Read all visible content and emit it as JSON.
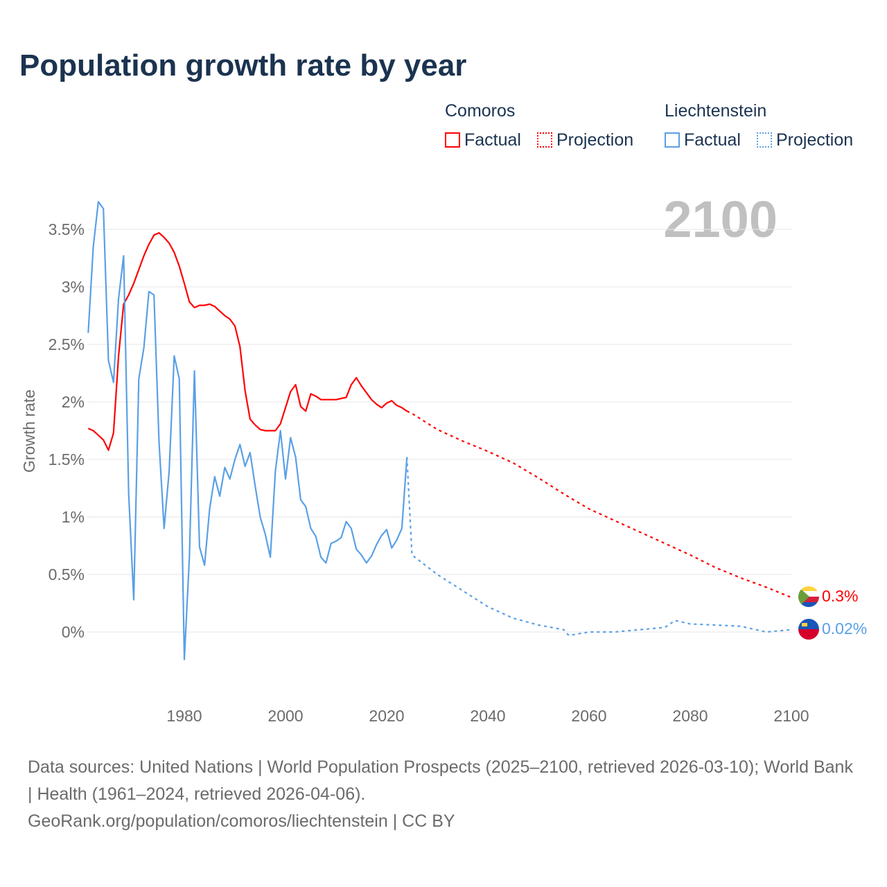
{
  "title": "Population growth rate by year",
  "legend": {
    "groups": [
      {
        "name": "Comoros",
        "color": "#ff0000",
        "factual": "Factual",
        "projection": "Projection"
      },
      {
        "name": "Liechtenstein",
        "color": "#5aa0e6",
        "factual": "Factual",
        "projection": "Projection"
      }
    ]
  },
  "year_display": "2100",
  "end_labels": {
    "comoros": "0.3%",
    "liechtenstein": "0.02%"
  },
  "source_lines": [
    "Data sources: United Nations | World Population Prospects (2025–2100, retrieved 2026-03-10); World Bank | Health (1961–2024, retrieved 2026-04-06).",
    "GeoRank.org/population/comoros/liechtenstein | CC BY"
  ],
  "chart_data": {
    "type": "line",
    "title": "Population growth rate by year",
    "xlabel": "",
    "ylabel": "Growth rate",
    "xlim": [
      1961,
      2100
    ],
    "ylim": [
      -0.45,
      3.8
    ],
    "xticks": [
      "1980",
      "2000",
      "2020",
      "2040",
      "2060",
      "2080",
      "2100"
    ],
    "yticks": [
      "0%",
      "0.5%",
      "1%",
      "1.5%",
      "2%",
      "2.5%",
      "3%",
      "3.5%"
    ],
    "series": [
      {
        "name": "Comoros Factual",
        "x_start": 1961,
        "values": [
          1.77,
          1.75,
          1.71,
          1.67,
          1.58,
          1.73,
          2.4,
          2.85,
          2.93,
          3.03,
          3.15,
          3.27,
          3.37,
          3.45,
          3.47,
          3.43,
          3.38,
          3.3,
          3.18,
          3.03,
          2.87,
          2.82,
          2.84,
          2.84,
          2.85,
          2.83,
          2.79,
          2.75,
          2.72,
          2.66,
          2.48,
          2.1,
          1.85,
          1.8,
          1.76,
          1.75,
          1.75,
          1.75,
          1.81,
          1.95,
          2.09,
          2.15,
          1.96,
          1.92,
          2.07,
          2.05,
          2.02,
          2.02,
          2.02,
          2.02,
          2.03,
          2.04,
          2.15,
          2.21,
          2.14,
          2.08,
          2.02,
          1.98,
          1.95,
          1.99,
          2.01,
          1.97,
          1.95,
          1.92
        ]
      },
      {
        "name": "Comoros Projection",
        "x": [
          2024,
          2025,
          2030,
          2035,
          2040,
          2045,
          2050,
          2055,
          2060,
          2065,
          2070,
          2075,
          2080,
          2085,
          2090,
          2095,
          2100
        ],
        "values": [
          1.92,
          1.9,
          1.76,
          1.66,
          1.57,
          1.47,
          1.34,
          1.2,
          1.07,
          0.97,
          0.87,
          0.77,
          0.67,
          0.56,
          0.47,
          0.39,
          0.3
        ]
      },
      {
        "name": "Liechtenstein Factual",
        "x_start": 1961,
        "values": [
          2.6,
          3.35,
          3.74,
          3.68,
          2.36,
          2.17,
          2.9,
          3.27,
          1.2,
          0.28,
          2.2,
          2.47,
          2.96,
          2.93,
          1.65,
          0.9,
          1.4,
          2.4,
          2.2,
          -0.24,
          0.65,
          2.27,
          0.74,
          0.58,
          1.07,
          1.35,
          1.18,
          1.43,
          1.33,
          1.5,
          1.63,
          1.44,
          1.56,
          1.27,
          1.0,
          0.85,
          0.65,
          1.4,
          1.75,
          1.33,
          1.69,
          1.52,
          1.15,
          1.09,
          0.9,
          0.83,
          0.65,
          0.6,
          0.77,
          0.79,
          0.82,
          0.96,
          0.9,
          0.72,
          0.67,
          0.6,
          0.66,
          0.76,
          0.84,
          0.89,
          0.73,
          0.8,
          0.9,
          1.52
        ]
      },
      {
        "name": "Liechtenstein Projection",
        "x": [
          2024,
          2025,
          2030,
          2035,
          2040,
          2045,
          2050,
          2055,
          2056,
          2060,
          2065,
          2070,
          2075,
          2077,
          2080,
          2085,
          2090,
          2095,
          2100
        ],
        "values": [
          1.52,
          0.67,
          0.5,
          0.36,
          0.22,
          0.12,
          0.06,
          0.02,
          -0.03,
          0.0,
          0.0,
          0.02,
          0.04,
          0.1,
          0.07,
          0.06,
          0.05,
          0.0,
          0.02
        ]
      }
    ]
  }
}
